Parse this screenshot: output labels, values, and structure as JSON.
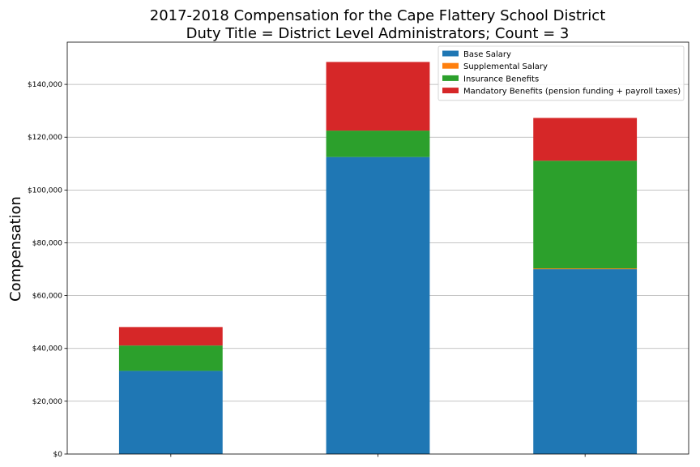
{
  "chart_data": {
    "type": "bar",
    "stacked": true,
    "title": "2017-2018 Compensation for the Cape Flattery School District",
    "subtitle": "Duty Title = District Level Administrators; Count = 3",
    "xlabel": "",
    "ylabel": "Compensation",
    "ylim": [
      0,
      156000
    ],
    "yticks": [
      0,
      20000,
      40000,
      60000,
      80000,
      100000,
      120000,
      140000
    ],
    "ytick_labels": [
      "$0",
      "$20,000",
      "$40,000",
      "$60,000",
      "$80,000",
      "$100,000",
      "$120,000",
      "$140,000"
    ],
    "categories": [
      "",
      "",
      ""
    ],
    "grid": "horizontal",
    "legend_position": "top-right",
    "series": [
      {
        "name": "Base Salary",
        "color": "#1f77b4",
        "values": [
          31500,
          112500,
          70000
        ]
      },
      {
        "name": "Supplemental Salary",
        "color": "#ff7f0e",
        "values": [
          0,
          0,
          300
        ]
      },
      {
        "name": "Insurance Benefits",
        "color": "#2ca02c",
        "values": [
          9600,
          10000,
          40800
        ]
      },
      {
        "name": "Mandatory Benefits (pension funding + payroll taxes)",
        "color": "#d62728",
        "values": [
          7000,
          26000,
          16200
        ]
      }
    ]
  }
}
